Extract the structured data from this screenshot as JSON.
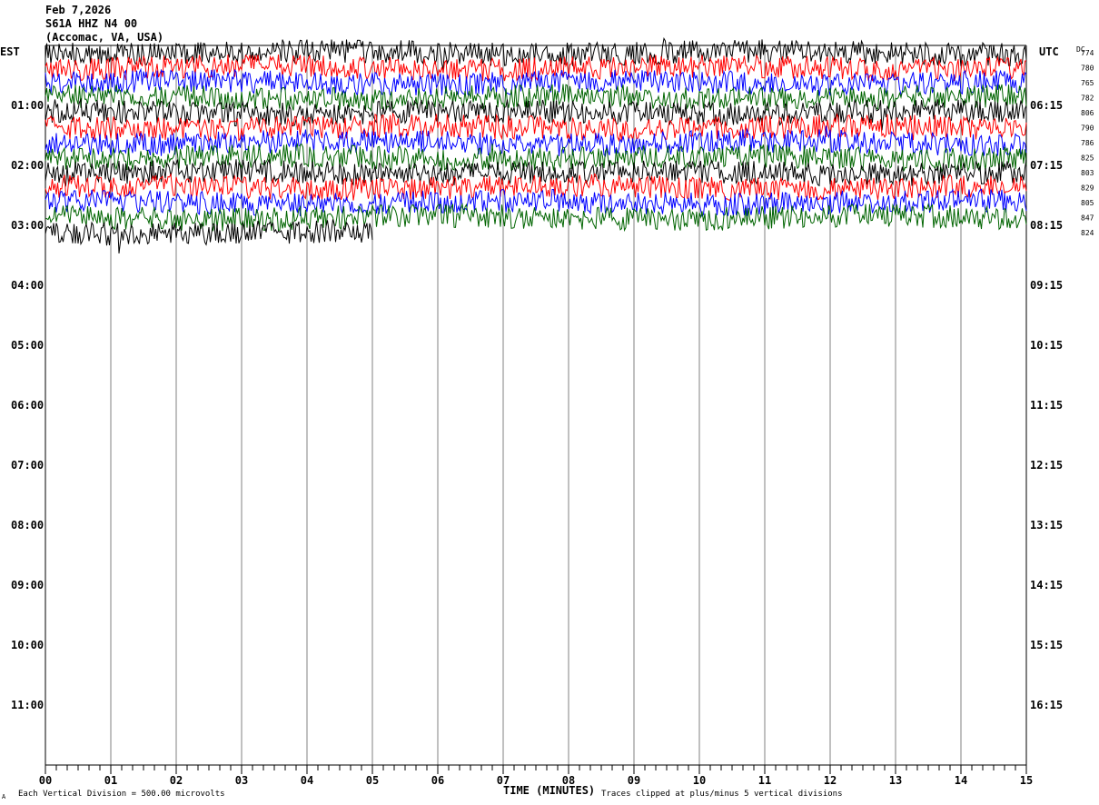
{
  "header": {
    "date": "Feb 7,2026",
    "station": "S61A HHZ N4 00",
    "location": "(Accomac, VA, USA)"
  },
  "axes": {
    "left_zone": "EST",
    "right_zone": "UTC",
    "dc_label": "DC",
    "xlabel": "TIME (MINUTES)",
    "scale_note": "Each Vertical Division =  500.00 microvolts",
    "clip_note": "Traces clipped at plus/minus 5 vertical divisions",
    "corner_mark": "A"
  },
  "colors": {
    "trace_cycle": [
      "#000000",
      "#ff0000",
      "#0000ff",
      "#006400"
    ],
    "grid": "#808080"
  },
  "chart_data": {
    "type": "line",
    "xlim": [
      0,
      15
    ],
    "x_ticks": [
      "00",
      "01",
      "02",
      "03",
      "04",
      "05",
      "06",
      "07",
      "08",
      "09",
      "10",
      "11",
      "12",
      "13",
      "14",
      "15"
    ],
    "left_hour_labels": [
      "01:00",
      "02:00",
      "03:00",
      "04:00",
      "05:00",
      "06:00",
      "07:00",
      "08:00",
      "09:00",
      "10:00",
      "11:00"
    ],
    "right_hour_labels": [
      "06:15",
      "07:15",
      "08:15",
      "09:15",
      "10:15",
      "11:15",
      "12:15",
      "13:15",
      "14:15",
      "15:15",
      "16:15"
    ],
    "rows_per_hour": 4,
    "row_count": 48,
    "dc_offsets": [
      "774",
      "780",
      "765",
      "782",
      "806",
      "790",
      "786",
      "825",
      "803",
      "829",
      "805",
      "847",
      "824"
    ],
    "traces_drawn": 13,
    "last_trace_end_minute": 5.0
  }
}
